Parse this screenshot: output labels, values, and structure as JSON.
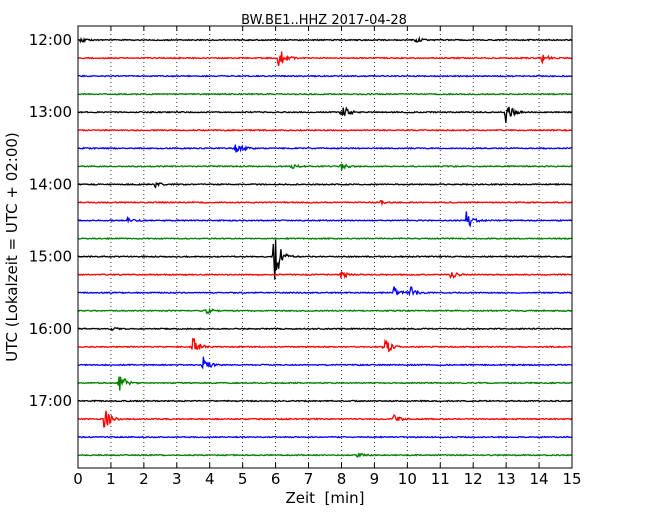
{
  "chart_data": {
    "type": "line",
    "title": "BW.BE1..HHZ 2017-04-28",
    "xlabel": "Zeit  [min]",
    "ylabel": "UTC (Lokalzeit = UTC + 02:00)",
    "xlim": [
      0,
      15
    ],
    "x_ticks": [
      "0",
      "1",
      "2",
      "3",
      "4",
      "5",
      "6",
      "7",
      "8",
      "9",
      "10",
      "11",
      "12",
      "13",
      "14",
      "15"
    ],
    "y_ticks": [
      "12:00",
      "13:00",
      "14:00",
      "15:00",
      "16:00",
      "17:00"
    ],
    "grid": "vertical dotted",
    "trace_colors": [
      "#000000",
      "#ff0000",
      "#0000ff",
      "#008000"
    ],
    "traces": [
      {
        "start": "12:00",
        "events": [
          {
            "t": 0.1,
            "amp": 0.3
          },
          {
            "t": 10.25,
            "amp": 0.35
          }
        ]
      },
      {
        "start": "12:15",
        "events": [
          {
            "t": 6.1,
            "amp": 1.4
          },
          {
            "t": 14.1,
            "amp": 0.5
          }
        ]
      },
      {
        "start": "12:30",
        "events": []
      },
      {
        "start": "12:45",
        "events": []
      },
      {
        "start": "13:00",
        "events": [
          {
            "t": 8.0,
            "amp": 1.1
          },
          {
            "t": 13.0,
            "amp": 1.5
          }
        ]
      },
      {
        "start": "13:15",
        "events": []
      },
      {
        "start": "13:30",
        "events": [
          {
            "t": 4.8,
            "amp": 1.0
          }
        ]
      },
      {
        "start": "13:45",
        "events": [
          {
            "t": 6.5,
            "amp": 0.3
          },
          {
            "t": 8.0,
            "amp": 0.4
          }
        ]
      },
      {
        "start": "14:00",
        "events": [
          {
            "t": 2.35,
            "amp": 0.3
          }
        ]
      },
      {
        "start": "14:15",
        "events": [
          {
            "t": 9.2,
            "amp": 0.2
          }
        ]
      },
      {
        "start": "14:30",
        "events": [
          {
            "t": 1.5,
            "amp": 0.3
          },
          {
            "t": 11.8,
            "amp": 1.2
          }
        ]
      },
      {
        "start": "14:45",
        "events": []
      },
      {
        "start": "15:00",
        "events": [
          {
            "t": 5.95,
            "amp": 3.5
          }
        ]
      },
      {
        "start": "15:15",
        "events": [
          {
            "t": 8.0,
            "amp": 0.5
          },
          {
            "t": 11.3,
            "amp": 0.5
          }
        ]
      },
      {
        "start": "15:30",
        "events": [
          {
            "t": 9.6,
            "amp": 0.7
          },
          {
            "t": 10.1,
            "amp": 0.7
          }
        ]
      },
      {
        "start": "15:45",
        "events": [
          {
            "t": 3.9,
            "amp": 0.4
          }
        ]
      },
      {
        "start": "16:00",
        "events": [
          {
            "t": 1.0,
            "amp": 0.15
          }
        ]
      },
      {
        "start": "16:15",
        "events": [
          {
            "t": 3.5,
            "amp": 1.2
          },
          {
            "t": 9.3,
            "amp": 1.2
          }
        ]
      },
      {
        "start": "16:30",
        "events": [
          {
            "t": 3.8,
            "amp": 0.9
          }
        ]
      },
      {
        "start": "16:45",
        "events": [
          {
            "t": 1.25,
            "amp": 1.5
          }
        ]
      },
      {
        "start": "17:00",
        "events": []
      },
      {
        "start": "17:15",
        "events": [
          {
            "t": 0.8,
            "amp": 1.3
          },
          {
            "t": 9.6,
            "amp": 0.6
          }
        ]
      },
      {
        "start": "17:30",
        "events": []
      },
      {
        "start": "17:45",
        "events": [
          {
            "t": 8.5,
            "amp": 0.3
          }
        ]
      }
    ]
  }
}
